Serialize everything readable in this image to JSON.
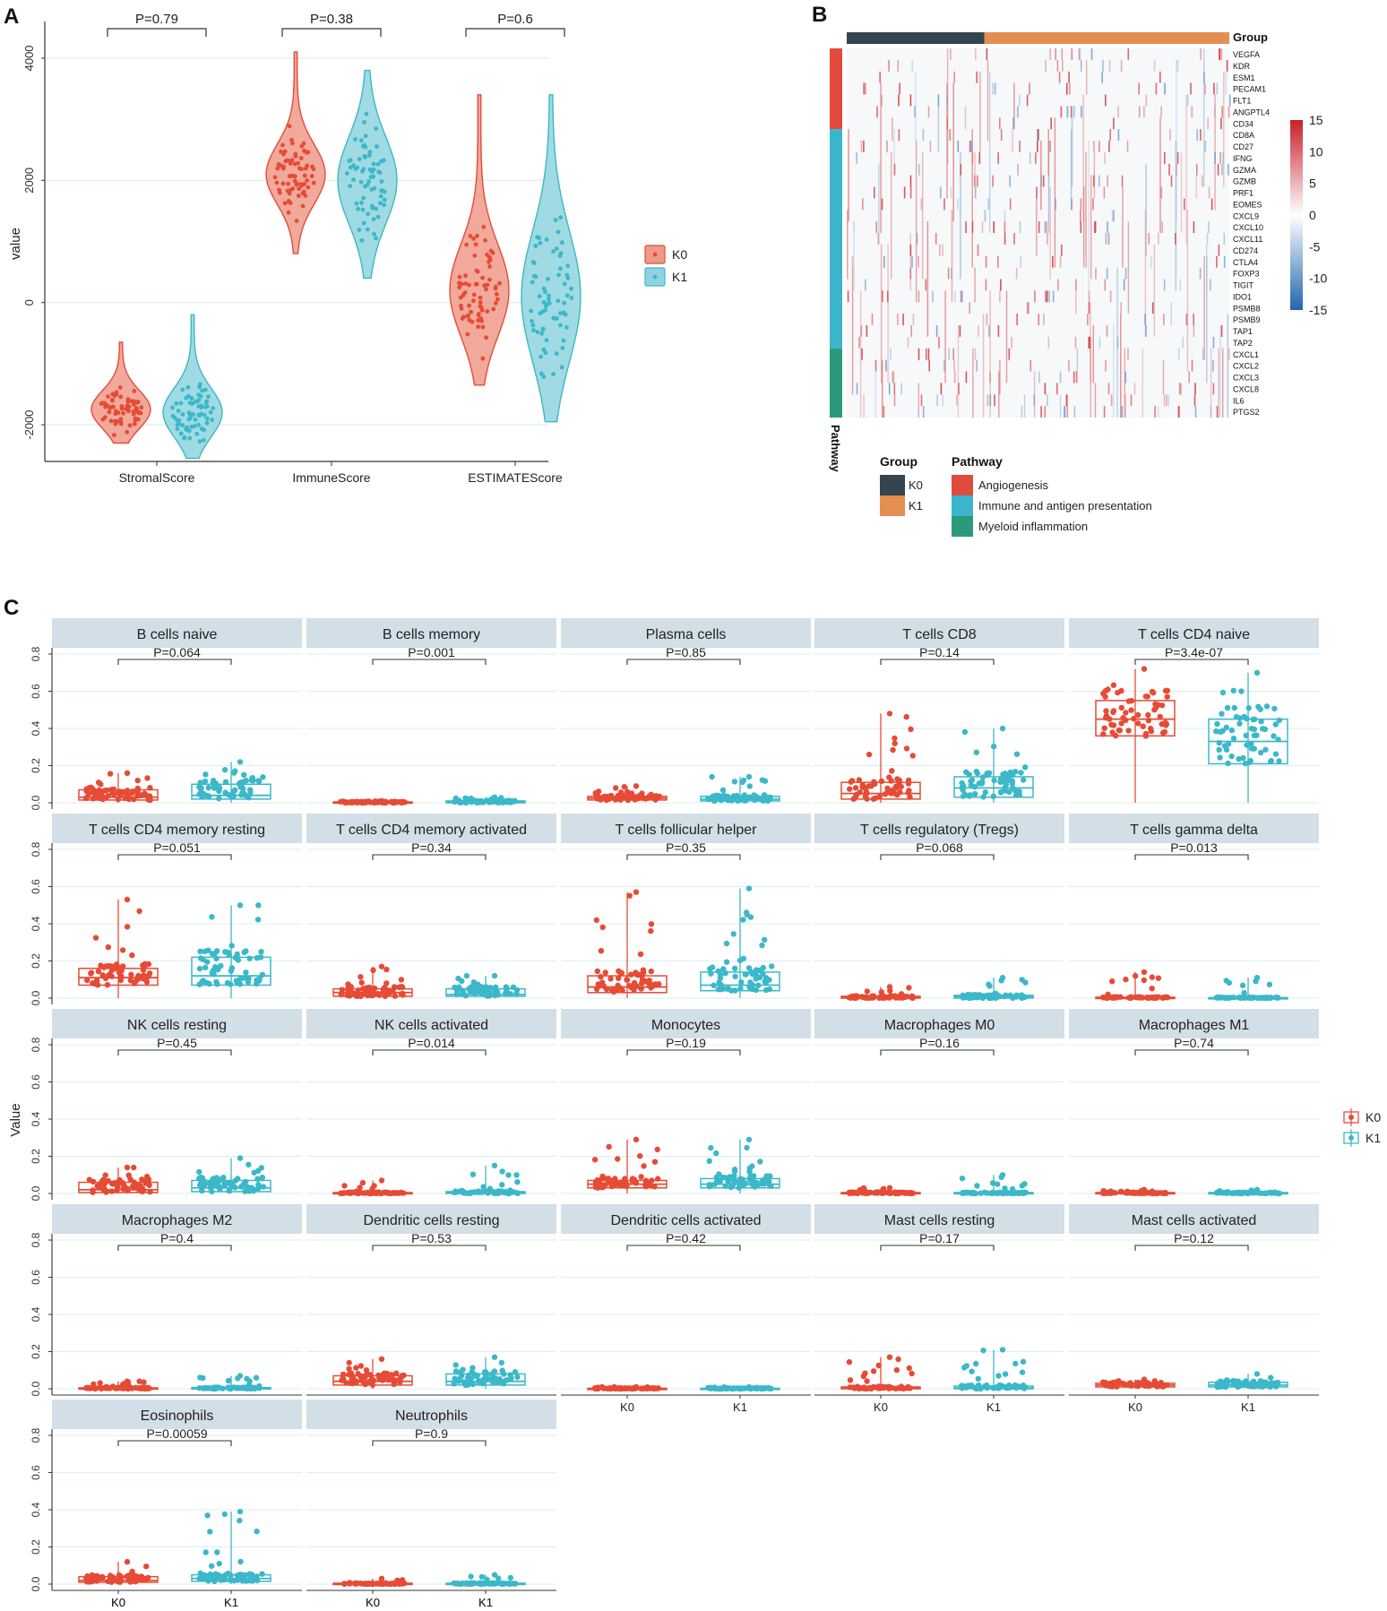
{
  "colors": {
    "k0": "#E64B35",
    "k1": "#3BB8C9",
    "k0_fill": "#EE9A8A",
    "k1_fill": "#8FD3DE",
    "grid": "#DCEEEE",
    "strip": "#D2DFE6",
    "group_k0": "#34454F",
    "group_k1": "#E38F52",
    "angiogenesis": "#E04B3E",
    "immune": "#3BB5CB",
    "myeloid": "#2B9A7C"
  },
  "panels": {
    "a": {
      "label": "A"
    },
    "b": {
      "label": "B"
    },
    "c": {
      "label": "C"
    }
  },
  "chart_data": [
    {
      "id": "A",
      "type": "violin",
      "title": "",
      "xlabel": "",
      "ylabel": "value",
      "ylim": [
        -2600,
        4600
      ],
      "yticks": [
        -2000,
        0,
        2000,
        4000
      ],
      "ytick_labels": [
        "-2000",
        "0",
        "2000",
        "4000"
      ],
      "categories": [
        "StromalScore",
        "ImmuneScore",
        "ESTIMATEScore"
      ],
      "series": [
        {
          "name": "K0",
          "medians": [
            -1750,
            2100,
            200
          ],
          "q1": [
            -1950,
            1850,
            -150
          ],
          "q3": [
            -1600,
            2400,
            700
          ],
          "min": [
            -2300,
            800,
            -1350
          ],
          "max": [
            -650,
            4100,
            3400
          ]
        },
        {
          "name": "K1",
          "medians": [
            -1800,
            2000,
            100
          ],
          "q1": [
            -2000,
            1600,
            -500
          ],
          "q3": [
            -1550,
            2400,
            700
          ],
          "min": [
            -2550,
            400,
            -1950
          ],
          "max": [
            -200,
            3800,
            3400
          ]
        }
      ],
      "pvalues": [
        "P=0.79",
        "P=0.38",
        "P=0.6"
      ],
      "legend": [
        "K0",
        "K1"
      ],
      "legend_position": "right"
    },
    {
      "id": "B",
      "type": "heatmap",
      "title": "",
      "genes": [
        "VEGFA",
        "KDR",
        "ESM1",
        "PECAM1",
        "FLT1",
        "ANGPTL4",
        "CD34",
        "CD8A",
        "CD27",
        "IFNG",
        "GZMA",
        "GZMB",
        "PRF1",
        "EOMES",
        "CXCL9",
        "CXCL10",
        "CXCL11",
        "CD274",
        "CTLA4",
        "FOXP3",
        "TIGIT",
        "IDO1",
        "PSMB8",
        "PSMB9",
        "TAP1",
        "TAP2",
        "CXCL1",
        "CXCL2",
        "CXCL3",
        "CXCL8",
        "IL6",
        "PTGS2"
      ],
      "gene_pathway_counts": {
        "Angiogenesis": 7,
        "Immune and antigen presentation": 19,
        "Myeloid inflammation": 6
      },
      "group_fraction_k0": 0.36,
      "colorbar_ticks": [
        15,
        10,
        5,
        0,
        -5,
        -10,
        -15
      ],
      "colorbar_labels": [
        "15",
        "10",
        "5",
        "0",
        "-5",
        "-10",
        "-15"
      ],
      "group_title": "Group",
      "pathway_axis_label": "Pathway",
      "legend_group_title": "Group",
      "legend_group_items": [
        "K0",
        "K1"
      ],
      "legend_pathway_title": "Pathway",
      "legend_pathway_items": [
        "Angiogenesis",
        "Immune and antigen presentation",
        "Myeloid inflammation"
      ]
    },
    {
      "id": "C",
      "type": "box",
      "ylabel": "Value",
      "ylim": [
        0,
        0.8
      ],
      "yticks": [
        0,
        0.2,
        0.4,
        0.6,
        0.8
      ],
      "ytick_labels": [
        "0.0",
        "0.2",
        "0.4",
        "0.6",
        "0.8"
      ],
      "xcategories": [
        "K0",
        "K1"
      ],
      "legend": [
        "K0",
        "K1"
      ],
      "legend_position": "right",
      "facets": [
        {
          "title": "B cells naive",
          "p": "P=0.064",
          "k0": [
            0.0,
            0.015,
            0.03,
            0.07,
            0.16
          ],
          "k1": [
            0.0,
            0.02,
            0.04,
            0.1,
            0.22
          ]
        },
        {
          "title": "B cells memory",
          "p": "P=0.001",
          "k0": [
            0.0,
            0.0,
            0.002,
            0.005,
            0.01
          ],
          "k1": [
            0.0,
            0.0,
            0.004,
            0.01,
            0.03
          ]
        },
        {
          "title": "Plasma cells",
          "p": "P=0.85",
          "k0": [
            0.0,
            0.015,
            0.025,
            0.035,
            0.09
          ],
          "k1": [
            0.0,
            0.01,
            0.02,
            0.035,
            0.14
          ]
        },
        {
          "title": "T cells CD8",
          "p": "P=0.14",
          "k0": [
            0.0,
            0.02,
            0.05,
            0.11,
            0.48
          ],
          "k1": [
            0.0,
            0.03,
            0.08,
            0.14,
            0.4
          ]
        },
        {
          "title": "T cells CD4 naive",
          "p": "P=3.4e-07",
          "k0": [
            0.0,
            0.36,
            0.45,
            0.55,
            0.72
          ],
          "k1": [
            0.0,
            0.21,
            0.33,
            0.45,
            0.7
          ]
        },
        {
          "title": "T cells CD4 memory resting",
          "p": "P=0.051",
          "k0": [
            0.0,
            0.07,
            0.11,
            0.16,
            0.53
          ],
          "k1": [
            0.0,
            0.07,
            0.12,
            0.22,
            0.5
          ]
        },
        {
          "title": "T cells CD4 memory activated",
          "p": "P=0.34",
          "k0": [
            0.0,
            0.01,
            0.03,
            0.05,
            0.17
          ],
          "k1": [
            0.0,
            0.01,
            0.02,
            0.05,
            0.12
          ]
        },
        {
          "title": "T cells follicular helper",
          "p": "P=0.35",
          "k0": [
            0.0,
            0.03,
            0.06,
            0.12,
            0.57
          ],
          "k1": [
            0.0,
            0.04,
            0.07,
            0.14,
            0.59
          ]
        },
        {
          "title": "T cells regulatory (Tregs)",
          "p": "P=0.068",
          "k0": [
            0.0,
            0.0,
            0.005,
            0.01,
            0.06
          ],
          "k1": [
            0.0,
            0.0,
            0.008,
            0.015,
            0.11
          ]
        },
        {
          "title": "T cells gamma delta",
          "p": "P=0.013",
          "k0": [
            0.0,
            0.0,
            0.0,
            0.005,
            0.14
          ],
          "k1": [
            0.0,
            0.0,
            0.0,
            0.003,
            0.11
          ]
        },
        {
          "title": "NK cells resting",
          "p": "P=0.45",
          "k0": [
            0.0,
            0.005,
            0.02,
            0.06,
            0.14
          ],
          "k1": [
            0.0,
            0.01,
            0.03,
            0.07,
            0.19
          ]
        },
        {
          "title": "NK cells activated",
          "p": "P=0.014",
          "k0": [
            0.0,
            0.0,
            0.0,
            0.005,
            0.07
          ],
          "k1": [
            0.0,
            0.0,
            0.003,
            0.01,
            0.15
          ]
        },
        {
          "title": "Monocytes",
          "p": "P=0.19",
          "k0": [
            0.0,
            0.03,
            0.05,
            0.07,
            0.29
          ],
          "k1": [
            0.0,
            0.03,
            0.05,
            0.08,
            0.29
          ]
        },
        {
          "title": "Macrophages M0",
          "p": "P=0.16",
          "k0": [
            0.0,
            0.0,
            0.0,
            0.005,
            0.03
          ],
          "k1": [
            0.0,
            0.0,
            0.0,
            0.005,
            0.1
          ]
        },
        {
          "title": "Macrophages M1",
          "p": "P=0.74",
          "k0": [
            0.0,
            0.0,
            0.002,
            0.005,
            0.02
          ],
          "k1": [
            0.0,
            0.0,
            0.002,
            0.005,
            0.02
          ]
        },
        {
          "title": "Macrophages M2",
          "p": "P=0.4",
          "k0": [
            0.0,
            0.0,
            0.002,
            0.005,
            0.04
          ],
          "k1": [
            0.0,
            0.0,
            0.002,
            0.006,
            0.07
          ]
        },
        {
          "title": "Dendritic cells resting",
          "p": "P=0.53",
          "k0": [
            0.0,
            0.02,
            0.04,
            0.07,
            0.16
          ],
          "k1": [
            0.0,
            0.02,
            0.04,
            0.08,
            0.17
          ]
        },
        {
          "title": "Dendritic cells activated",
          "p": "P=0.42",
          "k0": [
            0.0,
            0.0,
            0.0,
            0.003,
            0.01
          ],
          "k1": [
            0.0,
            0.0,
            0.0,
            0.003,
            0.01
          ]
        },
        {
          "title": "Mast cells resting",
          "p": "P=0.17",
          "k0": [
            0.0,
            0.0,
            0.003,
            0.01,
            0.17
          ],
          "k1": [
            0.0,
            0.0,
            0.005,
            0.015,
            0.21
          ]
        },
        {
          "title": "Mast cells activated",
          "p": "P=0.12",
          "k0": [
            0.0,
            0.01,
            0.02,
            0.03,
            0.05
          ],
          "k1": [
            0.0,
            0.01,
            0.02,
            0.035,
            0.08
          ]
        },
        {
          "title": "Eosinophils",
          "p": "P=0.00059",
          "k0": [
            0.0,
            0.01,
            0.02,
            0.04,
            0.12
          ],
          "k1": [
            0.0,
            0.015,
            0.03,
            0.05,
            0.39
          ]
        },
        {
          "title": "Neutrophils",
          "p": "P=0.9",
          "k0": [
            0.0,
            0.0,
            0.002,
            0.005,
            0.03
          ],
          "k1": [
            0.0,
            0.0,
            0.002,
            0.005,
            0.05
          ]
        }
      ]
    }
  ]
}
